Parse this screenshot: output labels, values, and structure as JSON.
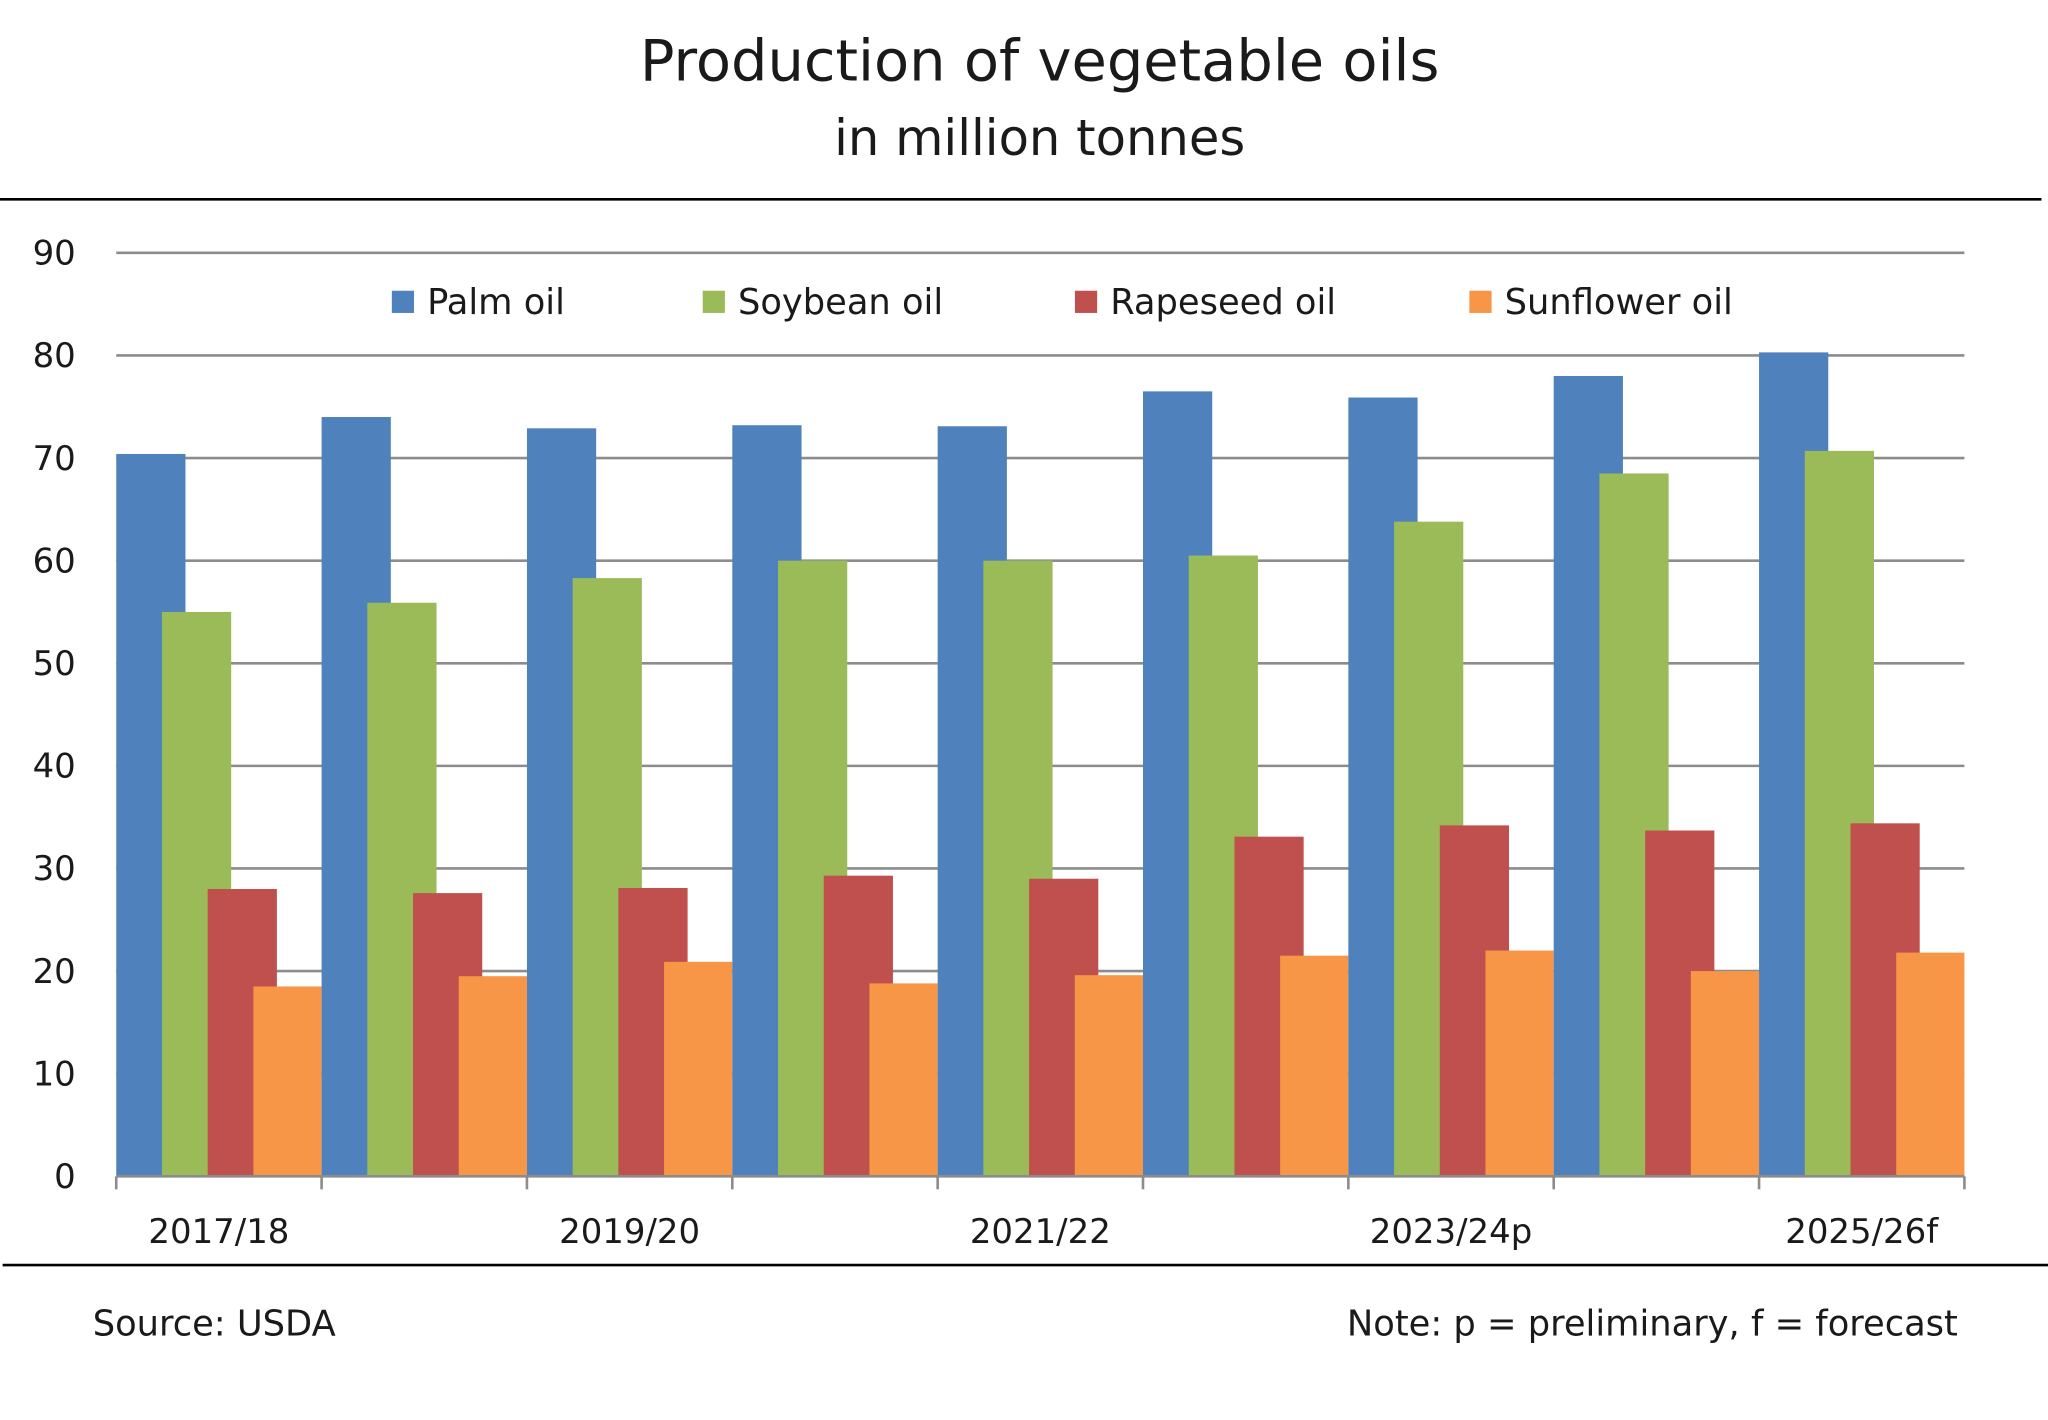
{
  "chart_data": {
    "type": "bar",
    "title": "Production of vegetable oils",
    "subtitle": "in million tonnes",
    "categories": [
      "2017/18",
      "",
      "2019/20",
      "",
      "2021/22",
      "",
      "2023/24p",
      "",
      "2025/26f"
    ],
    "series": [
      {
        "name": "Palm oil",
        "color": "#4F81BD",
        "values": [
          70.4,
          74.0,
          72.9,
          73.2,
          73.1,
          76.5,
          75.9,
          78.0,
          80.3
        ]
      },
      {
        "name": "Soybean oil",
        "color": "#9BBB59",
        "values": [
          55.0,
          55.9,
          58.3,
          60.0,
          60.0,
          60.5,
          63.8,
          68.5,
          70.7
        ]
      },
      {
        "name": "Rapeseed oil",
        "color": "#C0504D",
        "values": [
          28.0,
          27.6,
          28.1,
          29.3,
          29.0,
          33.1,
          34.2,
          33.7,
          34.4
        ]
      },
      {
        "name": "Sunflower oil",
        "color": "#F79646",
        "values": [
          18.5,
          19.5,
          20.9,
          18.8,
          19.6,
          21.5,
          22.0,
          20.0,
          21.8
        ]
      }
    ],
    "ylim": [
      0,
      90
    ],
    "yticks": [
      0,
      10,
      20,
      30,
      40,
      50,
      60,
      70,
      80,
      90
    ],
    "grid": true,
    "legend": "top-center",
    "xlabel": "",
    "ylabel": ""
  },
  "footer": {
    "source": "Source: USDA",
    "note": "Note: p = preliminary, f = forecast"
  }
}
